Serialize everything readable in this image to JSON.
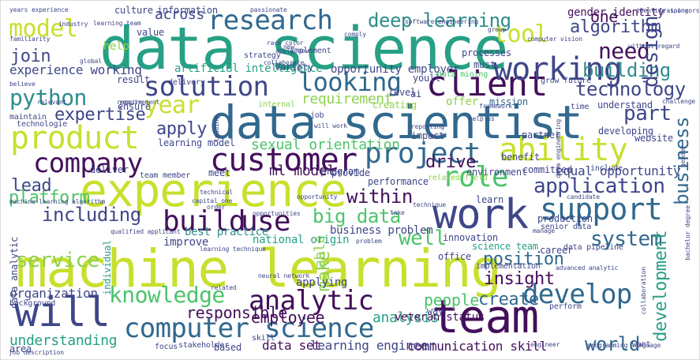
{
  "palette": {
    "yellow": "#c8df2d",
    "lime": "#8fd14f",
    "green": "#4dc36b",
    "teal": "#27a085",
    "cyan": "#2e8d8c",
    "blue": "#31688e",
    "indigo": "#3f4789",
    "purple": "#440f5b"
  },
  "words": [
    {
      "text": "data science",
      "color": "teal"
    },
    {
      "text": "machine learning",
      "color": "yellow"
    },
    {
      "text": "data scientist",
      "color": "blue"
    },
    {
      "text": "experience",
      "color": "yellow"
    },
    {
      "text": "team",
      "color": "purple"
    },
    {
      "text": "work",
      "color": "indigo"
    },
    {
      "text": "will",
      "color": "indigo"
    },
    {
      "text": "product",
      "color": "yellow"
    },
    {
      "text": "project",
      "color": "blue"
    },
    {
      "text": "customer",
      "color": "purple"
    },
    {
      "text": "client",
      "color": "purple"
    },
    {
      "text": "working",
      "color": "indigo"
    },
    {
      "text": "ability",
      "color": "yellow"
    },
    {
      "text": "company",
      "color": "purple"
    },
    {
      "text": "research",
      "color": "blue"
    },
    {
      "text": "solution",
      "color": "indigo"
    },
    {
      "text": "looking",
      "color": "blue"
    },
    {
      "text": "support",
      "color": "blue"
    },
    {
      "text": "role",
      "color": "green"
    },
    {
      "text": "build",
      "color": "purple"
    },
    {
      "text": "use",
      "color": "purple"
    },
    {
      "text": "analytic",
      "color": "purple"
    },
    {
      "text": "develop",
      "color": "blue"
    },
    {
      "text": "computer science",
      "color": "blue"
    },
    {
      "text": "knowledge",
      "color": "green"
    },
    {
      "text": "tool",
      "color": "yellow"
    },
    {
      "text": "model",
      "color": "yellow"
    },
    {
      "text": "year",
      "color": "yellow"
    },
    {
      "text": "python",
      "color": "cyan"
    },
    {
      "text": "deep learning",
      "color": "cyan"
    },
    {
      "text": "need",
      "color": "purple"
    },
    {
      "text": "technology",
      "color": "indigo"
    },
    {
      "text": "building",
      "color": "cyan"
    },
    {
      "text": "design",
      "color": "indigo"
    },
    {
      "text": "algorithm",
      "color": "indigo"
    },
    {
      "text": "part",
      "color": "indigo"
    },
    {
      "text": "business",
      "color": "blue"
    },
    {
      "text": "application",
      "color": "indigo"
    },
    {
      "text": "system",
      "color": "blue"
    },
    {
      "text": "development",
      "color": "teal"
    },
    {
      "text": "service",
      "color": "lime"
    },
    {
      "text": "including",
      "color": "indigo"
    },
    {
      "text": "within",
      "color": "purple"
    },
    {
      "text": "big data",
      "color": "green"
    },
    {
      "text": "create",
      "color": "blue"
    },
    {
      "text": "insight",
      "color": "purple"
    },
    {
      "text": "world",
      "color": "blue"
    },
    {
      "text": "well",
      "color": "green"
    },
    {
      "text": "join",
      "color": "indigo"
    },
    {
      "text": "lead",
      "color": "indigo"
    },
    {
      "text": "platform",
      "color": "green"
    },
    {
      "text": "expertise",
      "color": "indigo"
    },
    {
      "text": "apply",
      "color": "indigo"
    },
    {
      "text": "drive",
      "color": "purple"
    },
    {
      "text": "make",
      "color": "lime"
    },
    {
      "text": "position",
      "color": "blue"
    },
    {
      "text": "responsible",
      "color": "purple"
    },
    {
      "text": "employee",
      "color": "purple"
    },
    {
      "text": "analysis",
      "color": "teal"
    },
    {
      "text": "people",
      "color": "green"
    },
    {
      "text": "understanding",
      "color": "teal"
    },
    {
      "text": "organization",
      "color": "indigo"
    },
    {
      "text": "experience working",
      "color": "indigo"
    },
    {
      "text": "across",
      "color": "indigo"
    },
    {
      "text": "one",
      "color": "purple"
    },
    {
      "text": "sexual orientation",
      "color": "green"
    },
    {
      "text": "ml model",
      "color": "purple"
    },
    {
      "text": "requirement",
      "color": "lime"
    },
    {
      "text": "equal opportunity",
      "color": "indigo"
    },
    {
      "text": "able",
      "color": "lime"
    },
    {
      "text": "data set",
      "color": "purple"
    },
    {
      "text": "communication skill",
      "color": "purple"
    },
    {
      "text": "learning engineer",
      "color": "indigo"
    },
    {
      "text": "artificial intelligence",
      "color": "teal"
    },
    {
      "text": "gender identity",
      "color": "purple"
    },
    {
      "text": "opportunity employer",
      "color": "indigo"
    },
    {
      "text": "business problem",
      "color": "indigo"
    },
    {
      "text": "best practice",
      "color": "cyan"
    },
    {
      "text": "national origin",
      "color": "teal"
    },
    {
      "text": "veteran status",
      "color": "purple"
    },
    {
      "text": "learning model",
      "color": "indigo"
    },
    {
      "text": "culture",
      "color": "indigo"
    },
    {
      "text": "information",
      "color": "indigo"
    },
    {
      "text": "variety",
      "color": "indigo"
    },
    {
      "text": "provide",
      "color": "indigo"
    },
    {
      "text": "offer",
      "color": "lime"
    },
    {
      "text": "mission",
      "color": "blue"
    },
    {
      "text": "understand",
      "color": "indigo"
    },
    {
      "text": "developing",
      "color": "indigo"
    },
    {
      "text": "website",
      "color": "indigo"
    },
    {
      "text": "partner",
      "color": "indigo"
    },
    {
      "text": "impact",
      "color": "indigo"
    },
    {
      "text": "deliver",
      "color": "indigo"
    },
    {
      "text": "team member",
      "color": "indigo"
    },
    {
      "text": "meet",
      "color": "indigo"
    },
    {
      "text": "program",
      "color": "indigo"
    },
    {
      "text": "environment",
      "color": "indigo"
    },
    {
      "text": "benefit",
      "color": "indigo"
    },
    {
      "text": "committed",
      "color": "indigo"
    },
    {
      "text": "include",
      "color": "indigo"
    },
    {
      "text": "performance",
      "color": "indigo"
    },
    {
      "text": "production",
      "color": "indigo"
    },
    {
      "text": "innovation",
      "color": "indigo"
    },
    {
      "text": "science team",
      "color": "teal"
    },
    {
      "text": "career",
      "color": "indigo"
    },
    {
      "text": "office",
      "color": "indigo"
    },
    {
      "text": "implementation",
      "color": "indigo"
    },
    {
      "text": "applying",
      "color": "indigo"
    },
    {
      "text": "improve",
      "color": "indigo"
    },
    {
      "text": "individual",
      "color": "teal"
    },
    {
      "text": "data analytic",
      "color": "indigo"
    },
    {
      "text": "way",
      "color": "indigo"
    },
    {
      "text": "based",
      "color": "indigo"
    },
    {
      "text": "result",
      "color": "indigo"
    },
    {
      "text": "value",
      "color": "indigo"
    },
    {
      "text": "help",
      "color": "lime"
    },
    {
      "text": "ensure",
      "color": "indigo"
    },
    {
      "text": "technologie",
      "color": "indigo"
    },
    {
      "text": "processes",
      "color": "indigo"
    },
    {
      "text": "must",
      "color": "indigo"
    },
    {
      "text": "level",
      "color": "indigo"
    },
    {
      "text": "youll",
      "color": "indigo"
    },
    {
      "text": "grow",
      "color": "indigo"
    },
    {
      "text": "future",
      "color": "indigo"
    },
    {
      "text": "time",
      "color": "indigo"
    },
    {
      "text": "implement",
      "color": "indigo"
    },
    {
      "text": "strategy",
      "color": "indigo"
    },
    {
      "text": "data mining",
      "color": "green"
    },
    {
      "text": "maintain",
      "color": "indigo"
    },
    {
      "text": "delivery",
      "color": "indigo"
    },
    {
      "text": "believe",
      "color": "indigo"
    },
    {
      "text": "global",
      "color": "indigo"
    },
    {
      "text": "creating",
      "color": "lime"
    },
    {
      "text": "learn",
      "color": "indigo"
    },
    {
      "text": "job",
      "color": "indigo"
    },
    {
      "text": "skill",
      "color": "indigo"
    },
    {
      "text": "stakeholder",
      "color": "indigo"
    },
    {
      "text": "area",
      "color": "indigo"
    },
    {
      "text": "focus",
      "color": "indigo"
    },
    {
      "text": "senior data",
      "color": "indigo"
    },
    {
      "text": "data pipeline",
      "color": "indigo"
    },
    {
      "text": "computer vision",
      "color": "indigo"
    },
    {
      "text": "manage",
      "color": "indigo"
    },
    {
      "text": "perform",
      "color": "indigo"
    },
    {
      "text": "collaboration",
      "color": "indigo"
    },
    {
      "text": "want",
      "color": "indigo"
    },
    {
      "text": "background",
      "color": "indigo"
    },
    {
      "text": "requirement",
      "color": "indigo"
    },
    {
      "text": "technique",
      "color": "indigo"
    },
    {
      "text": "qualified applicant",
      "color": "indigo"
    },
    {
      "text": "opportunities",
      "color": "indigo"
    },
    {
      "text": "technical",
      "color": "indigo"
    },
    {
      "text": "order",
      "color": "indigo"
    },
    {
      "text": "leading",
      "color": "indigo"
    },
    {
      "text": "reporting",
      "color": "indigo"
    },
    {
      "text": "related field",
      "color": "lime"
    },
    {
      "text": "challenge",
      "color": "indigo"
    },
    {
      "text": "framework",
      "color": "indigo"
    },
    {
      "text": "internal",
      "color": "lime"
    },
    {
      "text": "ai",
      "color": "indigo"
    },
    {
      "text": "identify",
      "color": "indigo"
    },
    {
      "text": "training",
      "color": "indigo"
    },
    {
      "text": "industry",
      "color": "indigo"
    },
    {
      "text": "years experience",
      "color": "indigo"
    },
    {
      "text": "passionate",
      "color": "indigo"
    },
    {
      "text": "familiarity",
      "color": "indigo"
    },
    {
      "text": "race color",
      "color": "indigo"
    },
    {
      "text": "collaborate",
      "color": "indigo"
    },
    {
      "text": "relevant",
      "color": "indigo"
    },
    {
      "text": "group",
      "color": "indigo"
    },
    {
      "text": "learning team",
      "color": "indigo"
    },
    {
      "text": "software engineering",
      "color": "indigo"
    },
    {
      "text": "without regard",
      "color": "indigo"
    },
    {
      "text": "sponsorship",
      "color": "indigo"
    },
    {
      "text": "data engineering",
      "color": "indigo"
    },
    {
      "text": "bachelor degree",
      "color": "indigo"
    },
    {
      "text": "programming language",
      "color": "indigo"
    },
    {
      "text": "advanced analytic",
      "color": "indigo"
    },
    {
      "text": "neural network",
      "color": "indigo"
    },
    {
      "text": "job description",
      "color": "indigo"
    },
    {
      "text": "capital one",
      "color": "indigo"
    },
    {
      "text": "machine learning algorithm",
      "color": "indigo"
    },
    {
      "text": "learning technique",
      "color": "indigo"
    },
    {
      "text": "candidate",
      "color": "indigo"
    },
    {
      "text": "problem",
      "color": "indigo"
    },
    {
      "text": "take",
      "color": "indigo"
    },
    {
      "text": "will work",
      "color": "indigo"
    },
    {
      "text": "help us",
      "color": "indigo"
    },
    {
      "text": "engineer",
      "color": "indigo"
    },
    {
      "text": "gender",
      "color": "indigo"
    },
    {
      "text": "require",
      "color": "indigo"
    },
    {
      "text": "apply now",
      "color": "indigo"
    },
    {
      "text": "comply",
      "color": "indigo"
    },
    {
      "text": "new",
      "color": "indigo"
    },
    {
      "text": "related",
      "color": "indigo"
    },
    {
      "text": "opportunity",
      "color": "indigo"
    }
  ]
}
